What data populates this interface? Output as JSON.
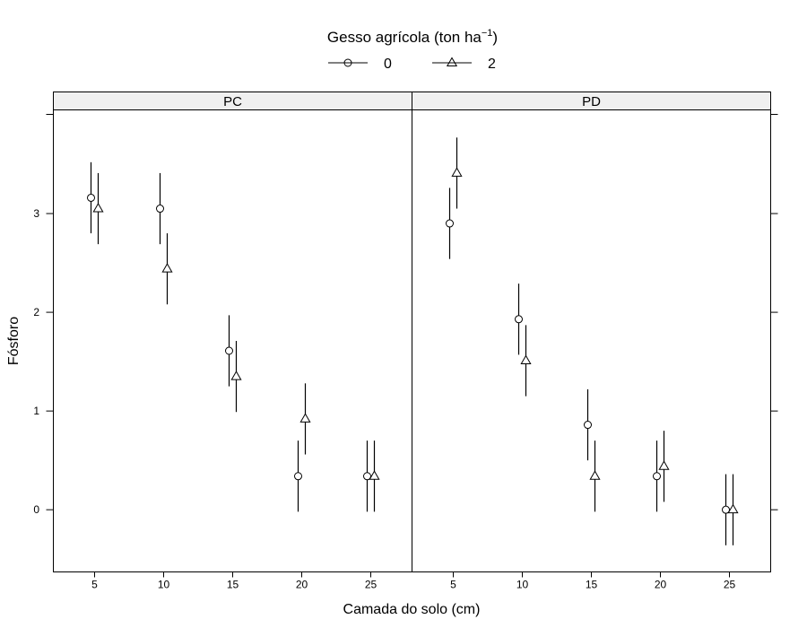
{
  "chart_data": {
    "type": "scatter",
    "legend": {
      "title_text": "Gesso agrícola (ton ha",
      "title_exponent": "−1",
      "title_close": ")",
      "placement": "top-center",
      "entries": [
        {
          "label": "0",
          "marker": "circle"
        },
        {
          "label": "2",
          "marker": "triangle"
        }
      ]
    },
    "xlabel": "Camada do solo (cm)",
    "ylabel": "Fósforo",
    "categories": [
      "5",
      "10",
      "15",
      "20",
      "25"
    ],
    "y_ticks": [
      "0",
      "1",
      "2",
      "3"
    ],
    "ylim": [
      -0.63,
      4.05
    ],
    "panels": [
      {
        "title": "PC",
        "series": [
          {
            "name": "0",
            "marker": "circle",
            "values": [
              3.16,
              3.05,
              1.61,
              0.34,
              0.34
            ],
            "lower": [
              2.8,
              2.69,
              1.25,
              -0.02,
              -0.02
            ],
            "upper": [
              3.52,
              3.41,
              1.97,
              0.7,
              0.7
            ]
          },
          {
            "name": "2",
            "marker": "triangle",
            "values": [
              3.05,
              2.44,
              1.35,
              0.92,
              0.34
            ],
            "lower": [
              2.69,
              2.08,
              0.99,
              0.56,
              -0.02
            ],
            "upper": [
              3.41,
              2.8,
              1.71,
              1.28,
              0.7
            ]
          }
        ]
      },
      {
        "title": "PD",
        "series": [
          {
            "name": "0",
            "marker": "circle",
            "values": [
              2.9,
              1.93,
              0.86,
              0.34,
              0.0
            ],
            "lower": [
              2.54,
              1.57,
              0.5,
              -0.02,
              -0.36
            ],
            "upper": [
              3.26,
              2.29,
              1.22,
              0.7,
              0.36
            ]
          },
          {
            "name": "2",
            "marker": "triangle",
            "values": [
              3.41,
              1.51,
              0.34,
              0.44,
              0.0
            ],
            "lower": [
              3.05,
              1.15,
              -0.02,
              0.08,
              -0.36
            ],
            "upper": [
              3.77,
              1.87,
              0.7,
              0.8,
              0.36
            ]
          }
        ]
      }
    ]
  }
}
